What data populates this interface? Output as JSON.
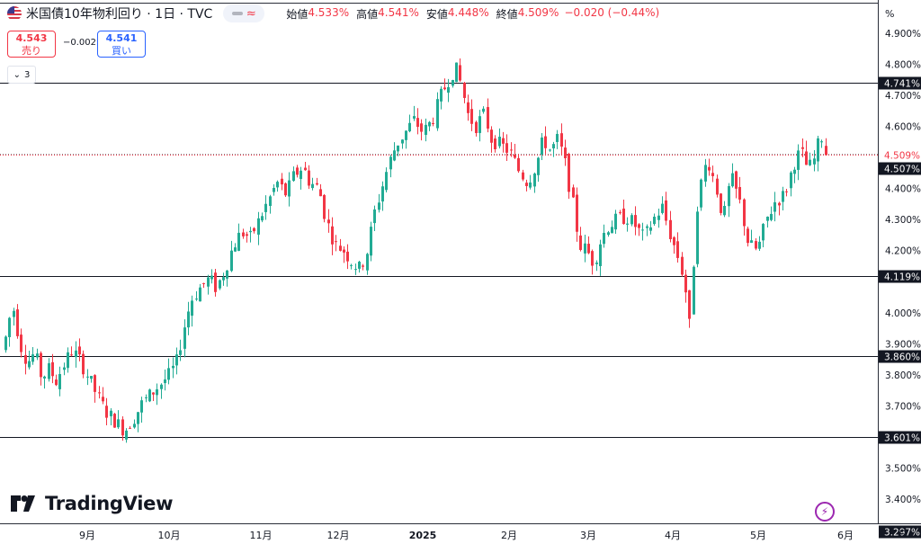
{
  "header": {
    "title": "米国債10年物利回り · 1日 · TVC",
    "open_label": "始値",
    "open_value": "4.533%",
    "high_label": "高値",
    "high_value": "4.541%",
    "low_label": "安値",
    "low_value": "4.448%",
    "close_label": "終値",
    "close_value": "4.509%",
    "change": "−0.020 (−0.44%)",
    "pill_icon": "compare-icon"
  },
  "trade": {
    "sell_price": "4.543",
    "sell_label": "売り",
    "spread": "−0.002",
    "buy_price": "4.541",
    "buy_label": "買い"
  },
  "collapse_count": "3",
  "axis_unit": "%",
  "logo_text": "TradingView",
  "colors": {
    "up": "#22ab94",
    "down": "#f23645",
    "text": "#131722",
    "grid": "#f0f3fa",
    "last_price_line": "#f23645"
  },
  "chart_data": {
    "type": "candlestick",
    "title": "米国債10年物利回り · 1日 · TVC",
    "ylim": [
      3.25,
      4.95
    ],
    "y_ticks": [
      "4.900%",
      "4.800%",
      "4.700%",
      "4.600%",
      "4.400%",
      "4.300%",
      "4.200%",
      "4.000%",
      "3.900%",
      "3.800%",
      "3.700%",
      "3.500%",
      "3.400%"
    ],
    "x_ticks": [
      "9月",
      "10月",
      "11月",
      "12月",
      "2025",
      "2月",
      "3月",
      "4月",
      "5月",
      "6月"
    ],
    "horizontal_lines": [
      {
        "value": 4.741,
        "label": "4.741%"
      },
      {
        "value": 4.119,
        "label": "4.119%"
      },
      {
        "value": 3.86,
        "label": "3.860%"
      },
      {
        "value": 3.601,
        "label": "3.601%"
      }
    ],
    "last_price": {
      "value": 4.509,
      "label": "4.509%"
    },
    "price_labels": [
      {
        "value": 4.507,
        "label": "4.507%"
      },
      {
        "value": 3.297,
        "label": "3.297%"
      }
    ],
    "close_path": [
      [
        0,
        3.8
      ],
      [
        8,
        3.96
      ],
      [
        14,
        4.02
      ],
      [
        22,
        3.9
      ],
      [
        30,
        3.84
      ],
      [
        38,
        3.87
      ],
      [
        46,
        3.79
      ],
      [
        54,
        3.82
      ],
      [
        62,
        3.78
      ],
      [
        72,
        3.84
      ],
      [
        80,
        3.88
      ],
      [
        90,
        3.84
      ],
      [
        100,
        3.78
      ],
      [
        110,
        3.72
      ],
      [
        118,
        3.68
      ],
      [
        128,
        3.65
      ],
      [
        138,
        3.62
      ],
      [
        148,
        3.66
      ],
      [
        158,
        3.71
      ],
      [
        168,
        3.74
      ],
      [
        178,
        3.77
      ],
      [
        188,
        3.8
      ],
      [
        196,
        3.84
      ],
      [
        204,
        3.95
      ],
      [
        212,
        4.04
      ],
      [
        222,
        4.08
      ],
      [
        232,
        4.11
      ],
      [
        240,
        4.08
      ],
      [
        250,
        4.14
      ],
      [
        258,
        4.21
      ],
      [
        268,
        4.26
      ],
      [
        278,
        4.24
      ],
      [
        288,
        4.3
      ],
      [
        298,
        4.36
      ],
      [
        308,
        4.42
      ],
      [
        318,
        4.38
      ],
      [
        326,
        4.44
      ],
      [
        336,
        4.47
      ],
      [
        344,
        4.42
      ],
      [
        354,
        4.4
      ],
      [
        362,
        4.3
      ],
      [
        372,
        4.22
      ],
      [
        382,
        4.2
      ],
      [
        392,
        4.16
      ],
      [
        400,
        4.14
      ],
      [
        408,
        4.2
      ],
      [
        416,
        4.32
      ],
      [
        424,
        4.4
      ],
      [
        432,
        4.48
      ],
      [
        440,
        4.54
      ],
      [
        450,
        4.58
      ],
      [
        460,
        4.62
      ],
      [
        470,
        4.58
      ],
      [
        480,
        4.62
      ],
      [
        490,
        4.7
      ],
      [
        500,
        4.76
      ],
      [
        506,
        4.79
      ],
      [
        512,
        4.74
      ],
      [
        520,
        4.64
      ],
      [
        528,
        4.6
      ],
      [
        538,
        4.64
      ],
      [
        546,
        4.56
      ],
      [
        556,
        4.54
      ],
      [
        566,
        4.52
      ],
      [
        576,
        4.46
      ],
      [
        586,
        4.42
      ],
      [
        596,
        4.48
      ],
      [
        604,
        4.56
      ],
      [
        612,
        4.52
      ],
      [
        620,
        4.56
      ],
      [
        628,
        4.48
      ],
      [
        636,
        4.36
      ],
      [
        644,
        4.22
      ],
      [
        652,
        4.2
      ],
      [
        660,
        4.16
      ],
      [
        668,
        4.24
      ],
      [
        676,
        4.28
      ],
      [
        686,
        4.3
      ],
      [
        696,
        4.31
      ],
      [
        706,
        4.28
      ],
      [
        716,
        4.24
      ],
      [
        726,
        4.3
      ],
      [
        736,
        4.34
      ],
      [
        746,
        4.24
      ],
      [
        756,
        4.16
      ],
      [
        764,
        4.04
      ],
      [
        768,
        3.9
      ],
      [
        772,
        4.3
      ],
      [
        778,
        4.4
      ],
      [
        786,
        4.5
      ],
      [
        796,
        4.4
      ],
      [
        804,
        4.3
      ],
      [
        812,
        4.44
      ],
      [
        822,
        4.36
      ],
      [
        832,
        4.22
      ],
      [
        842,
        4.2
      ],
      [
        852,
        4.3
      ],
      [
        862,
        4.36
      ],
      [
        872,
        4.38
      ],
      [
        882,
        4.48
      ],
      [
        890,
        4.52
      ],
      [
        898,
        4.46
      ],
      [
        906,
        4.5
      ],
      [
        912,
        4.58
      ],
      [
        918,
        4.51
      ]
    ]
  }
}
